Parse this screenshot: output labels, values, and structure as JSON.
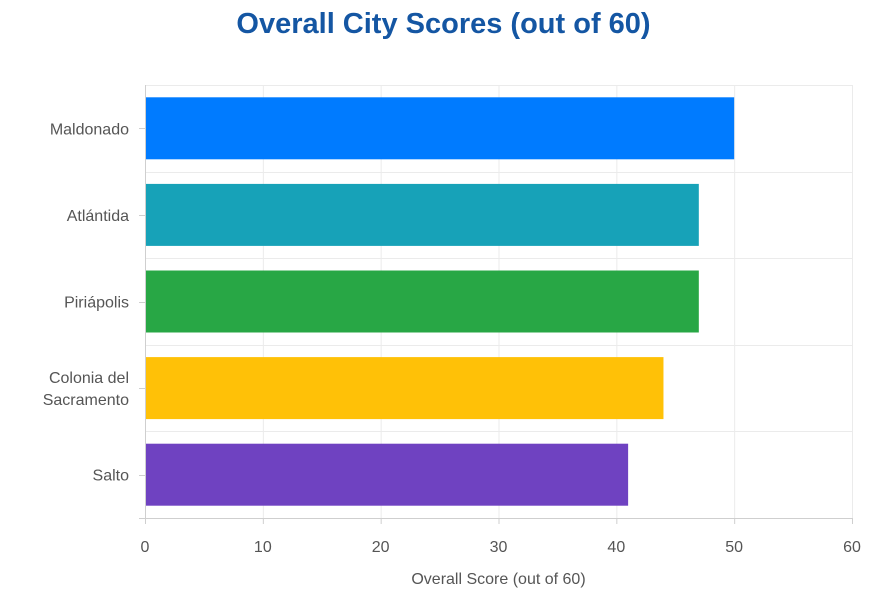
{
  "chart_data": {
    "type": "bar",
    "orientation": "horizontal",
    "title": "Overall City Scores (out of 60)",
    "xlabel": "Overall Score (out of 60)",
    "ylabel": "",
    "categories": [
      [
        "Maldonado"
      ],
      [
        "Atlántida"
      ],
      [
        "Piriápolis"
      ],
      [
        "Colonia del",
        "Sacramento"
      ],
      [
        "Salto"
      ]
    ],
    "values": [
      50,
      47,
      47,
      44,
      41
    ],
    "colors": [
      "#007bff",
      "#17a2b8",
      "#28a745",
      "#ffc107",
      "#6f42c1"
    ],
    "xlim": [
      0,
      60
    ],
    "xticks": [
      0,
      10,
      20,
      30,
      40,
      50,
      60
    ],
    "grid": true,
    "legend": "none"
  }
}
